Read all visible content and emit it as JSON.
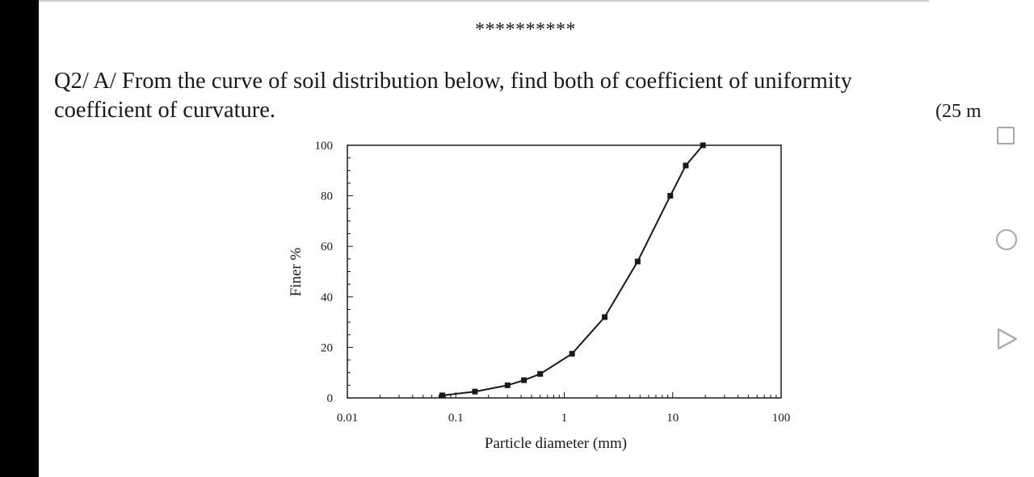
{
  "document": {
    "separator": "**********",
    "question_line1": "Q2/ A/ From the curve of soil distribution below, find both of coefficient of uniformity",
    "question_line2": "coefficient of curvature.",
    "marks": "(25 m"
  },
  "chart_data": {
    "type": "line",
    "title": "",
    "xlabel": "Particle diameter (mm)",
    "ylabel": "Finer %",
    "x_scale": "log",
    "xlim": [
      0.01,
      100
    ],
    "ylim": [
      0,
      100
    ],
    "x_ticks": [
      "0.01",
      "0.1",
      "1",
      "10",
      "100"
    ],
    "y_ticks": [
      "0",
      "20",
      "40",
      "60",
      "80",
      "100"
    ],
    "grid": false,
    "legend": "none",
    "marker": "square",
    "color": "#1a1a1a",
    "x": [
      0.075,
      0.15,
      0.3,
      0.425,
      0.6,
      1.18,
      2.36,
      4.75,
      9.5,
      13.2,
      19
    ],
    "y": [
      1,
      2.5,
      5,
      7,
      9.5,
      17.5,
      32,
      54,
      80,
      92,
      100
    ]
  },
  "side_controls": {
    "square": "square-icon",
    "circle": "circle-icon",
    "triangle": "triangle-play-icon"
  }
}
